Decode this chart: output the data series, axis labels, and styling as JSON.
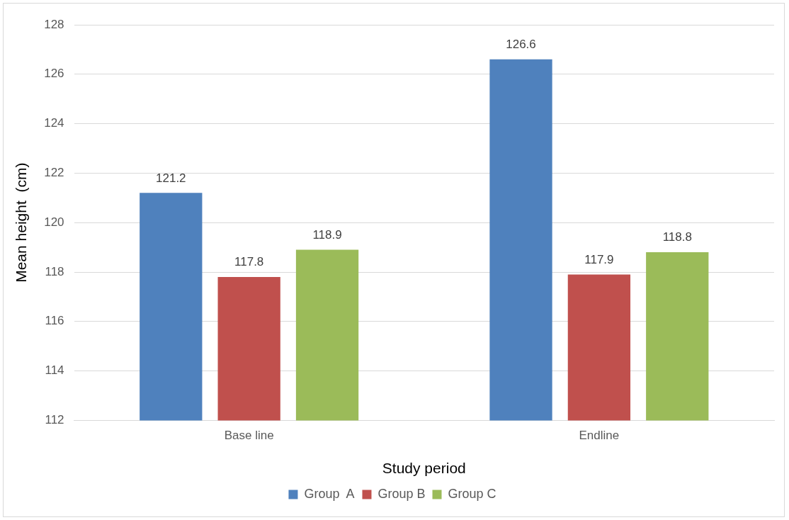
{
  "chart_data": {
    "type": "bar",
    "xlabel": "Study period",
    "ylabel": "Mean height  (cm)",
    "categories": [
      "Base line",
      "Endline"
    ],
    "series": [
      {
        "name": "Group  A",
        "color": "#4f81bd",
        "values": [
          121.2,
          126.6
        ]
      },
      {
        "name": "Group B",
        "color": "#c0504d",
        "values": [
          117.8,
          117.9
        ]
      },
      {
        "name": "Group C",
        "color": "#9bbb59",
        "values": [
          118.9,
          118.8
        ]
      }
    ],
    "ylim": [
      112,
      128
    ],
    "yticks": [
      112,
      114,
      116,
      118,
      120,
      122,
      124,
      126,
      128
    ],
    "grid": "y",
    "legend": "bottom",
    "data_labels": true
  }
}
